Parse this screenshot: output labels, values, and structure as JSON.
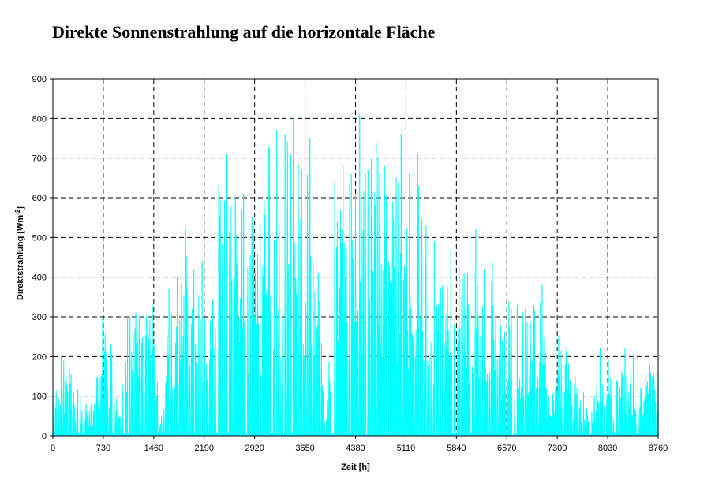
{
  "chart_data": {
    "type": "area",
    "title": "Direkte Sonnenstrahlung auf die horizontale Fläche",
    "xlabel": "Zeit [h]",
    "ylabel": "Direktstrahlung [Wm",
    "ylabel_sup": "-2",
    "ylabel_end": "]",
    "xlim": [
      0,
      8760
    ],
    "ylim": [
      0,
      900
    ],
    "x_ticks": [
      "0",
      "730",
      "1460",
      "2190",
      "2920",
      "3650",
      "4380",
      "5110",
      "5840",
      "6570",
      "7300",
      "8030",
      "8760"
    ],
    "y_ticks": [
      "0",
      "100",
      "200",
      "300",
      "400",
      "500",
      "600",
      "700",
      "800",
      "900"
    ],
    "grid": true,
    "series_color": "#00ffff",
    "series": [
      {
        "x": [
          0,
          120,
          240,
          360,
          480,
          600,
          720,
          840,
          960,
          1080,
          1200,
          1320,
          1440,
          1560,
          1680,
          1800,
          1920,
          2040,
          2160,
          2280,
          2400,
          2520,
          2640,
          2760,
          2880,
          3000,
          3120,
          3240,
          3360,
          3480,
          3600,
          3720,
          3840,
          3960,
          4080,
          4200,
          4320,
          4440,
          4560,
          4680,
          4800,
          4920,
          5040,
          5160,
          5280,
          5400,
          5520,
          5640,
          5760,
          5880,
          6000,
          6120,
          6240,
          6360,
          6480,
          6600,
          6720,
          6840,
          6960,
          7080,
          7200,
          7320,
          7440,
          7560,
          7680,
          7800,
          7920,
          8040,
          8160,
          8280,
          8400,
          8520,
          8640,
          8760
        ],
        "y": [
          100,
          200,
          170,
          115,
          80,
          80,
          300,
          230,
          50,
          300,
          310,
          300,
          330,
          30,
          370,
          400,
          520,
          420,
          440,
          290,
          630,
          710,
          600,
          610,
          550,
          530,
          730,
          770,
          760,
          800,
          670,
          750,
          410,
          40,
          640,
          680,
          660,
          810,
          670,
          740,
          680,
          590,
          760,
          660,
          710,
          530,
          490,
          380,
          470,
          430,
          410,
          520,
          420,
          440,
          280,
          340,
          330,
          320,
          330,
          380,
          50,
          250,
          230,
          150,
          110,
          60,
          220,
          190,
          140,
          220,
          200,
          120,
          180,
          160
        ]
      }
    ]
  }
}
